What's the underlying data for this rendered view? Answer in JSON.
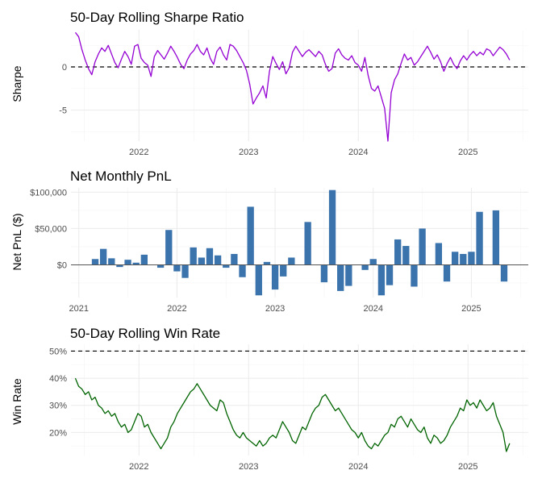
{
  "chart_data": [
    {
      "type": "line",
      "title": "50-Day Rolling Sharpe Ratio",
      "ylabel": "Sharpe",
      "xlabel": "",
      "x_ticks": [
        "2022",
        "2023",
        "2024",
        "2025"
      ],
      "x_range": [
        2021.38,
        2025.55
      ],
      "y_ticks": [
        -5,
        0
      ],
      "ylim": [
        -8.6,
        4.3
      ],
      "reference_line": 0,
      "grid": true,
      "line_color": "#9400D3",
      "series": [
        {
          "x": [
            2021.42,
            2021.45,
            2021.48,
            2021.51,
            2021.54,
            2021.57,
            2021.6,
            2021.63,
            2021.66,
            2021.69,
            2021.72,
            2021.75,
            2021.78,
            2021.81,
            2021.84,
            2021.87,
            2021.9,
            2021.93,
            2021.96,
            2021.99,
            2022.02,
            2022.05,
            2022.08,
            2022.11,
            2022.14,
            2022.17,
            2022.2,
            2022.23,
            2022.26,
            2022.29,
            2022.32,
            2022.35,
            2022.38,
            2022.41,
            2022.44,
            2022.47,
            2022.5,
            2022.53,
            2022.56,
            2022.59,
            2022.62,
            2022.65,
            2022.68,
            2022.71,
            2022.74,
            2022.77,
            2022.8,
            2022.83,
            2022.86,
            2022.89,
            2022.92,
            2022.95,
            2022.98,
            2023.01,
            2023.04,
            2023.07,
            2023.1,
            2023.13,
            2023.16,
            2023.19,
            2023.22,
            2023.25,
            2023.28,
            2023.31,
            2023.34,
            2023.37,
            2023.4,
            2023.43,
            2023.46,
            2023.49,
            2023.52,
            2023.55,
            2023.58,
            2023.61,
            2023.64,
            2023.67,
            2023.7,
            2023.73,
            2023.76,
            2023.79,
            2023.82,
            2023.85,
            2023.88,
            2023.91,
            2023.94,
            2023.97,
            2024.0,
            2024.03,
            2024.06,
            2024.09,
            2024.12,
            2024.15,
            2024.18,
            2024.21,
            2024.24,
            2024.27,
            2024.3,
            2024.33,
            2024.36,
            2024.39,
            2024.42,
            2024.45,
            2024.48,
            2024.51,
            2024.54,
            2024.57,
            2024.6,
            2024.63,
            2024.66,
            2024.69,
            2024.72,
            2024.75,
            2024.78,
            2024.81,
            2024.84,
            2024.87,
            2024.9,
            2024.93,
            2024.96,
            2024.99,
            2025.02,
            2025.05,
            2025.08,
            2025.11,
            2025.14,
            2025.17,
            2025.2,
            2025.23,
            2025.26,
            2025.29,
            2025.32,
            2025.35,
            2025.38
          ],
          "y": [
            4.0,
            3.5,
            2.0,
            0.8,
            -0.2,
            -0.9,
            0.6,
            1.5,
            2.2,
            1.8,
            2.5,
            1.5,
            0.5,
            -0.1,
            0.9,
            1.8,
            1.2,
            0.3,
            2.4,
            2.6,
            1.0,
            0.5,
            0.2,
            -1.1,
            1.2,
            1.9,
            1.4,
            0.9,
            1.6,
            2.4,
            1.8,
            1.1,
            0.3,
            -0.2,
            0.8,
            1.5,
            1.9,
            2.6,
            1.8,
            1.4,
            2.2,
            1.0,
            0.3,
            1.8,
            2.3,
            1.4,
            0.8,
            2.6,
            2.4,
            1.9,
            1.2,
            0.5,
            -0.4,
            -2.0,
            -4.3,
            -3.6,
            -3.0,
            -2.2,
            -3.6,
            -0.5,
            1.2,
            0.4,
            -0.3,
            0.6,
            -0.8,
            -0.1,
            1.7,
            2.4,
            1.8,
            1.2,
            1.7,
            2.0,
            1.6,
            1.2,
            1.8,
            1.4,
            0.3,
            -0.5,
            -0.2,
            1.6,
            2.1,
            1.4,
            1.0,
            0.8,
            1.3,
            0.5,
            0.2,
            -0.5,
            1.1,
            -1.0,
            -2.5,
            -2.8,
            -2.2,
            -3.5,
            -4.8,
            -8.6,
            -3.0,
            -1.5,
            -0.8,
            0.4,
            1.5,
            0.8,
            1.1,
            0.2,
            0.6,
            1.2,
            1.8,
            2.4,
            1.7,
            0.9,
            1.4,
            0.6,
            -0.5,
            0.4,
            1.1,
            0.3,
            -0.2,
            0.7,
            1.3,
            0.8,
            1.4,
            1.8,
            1.3,
            1.7,
            1.4,
            2.1,
            1.9,
            1.3,
            1.8,
            2.3,
            2.0,
            1.5,
            0.8
          ],
          "name": ""
        }
      ]
    },
    {
      "type": "bar",
      "title": "Net Monthly PnL",
      "ylabel": "Net PnL ($)",
      "xlabel": "",
      "x_ticks": [
        "2021",
        "2022",
        "2023",
        "2024",
        "2025"
      ],
      "x_range": [
        2020.92,
        2025.58
      ],
      "y_ticks": [
        "$0",
        "$50,000",
        "$100,000"
      ],
      "y_tick_values": [
        0,
        50000,
        100000
      ],
      "ylim": [
        -45000,
        106000
      ],
      "grid": true,
      "bar_color": "#3B73AD",
      "categories": [
        "2021-03",
        "2021-04",
        "2021-05",
        "2021-06",
        "2021-07",
        "2021-08",
        "2021-09",
        "2021-10",
        "2021-11",
        "2021-12",
        "2022-01",
        "2022-02",
        "2022-03",
        "2022-04",
        "2022-05",
        "2022-06",
        "2022-07",
        "2022-08",
        "2022-09",
        "2022-10",
        "2022-11",
        "2022-12",
        "2023-01",
        "2023-02",
        "2023-03",
        "2023-04",
        "2023-05",
        "2023-06",
        "2023-07",
        "2023-08",
        "2023-09",
        "2023-10",
        "2023-11",
        "2023-12",
        "2024-01",
        "2024-02",
        "2024-03",
        "2024-04",
        "2024-05",
        "2024-06",
        "2024-07",
        "2024-08",
        "2024-09",
        "2024-10",
        "2024-11",
        "2024-12",
        "2025-01",
        "2025-02",
        "2025-03",
        "2025-04",
        "2025-05"
      ],
      "values": [
        8000,
        22000,
        9000,
        -3000,
        7000,
        3000,
        14000,
        0,
        -4000,
        48000,
        -9000,
        -18000,
        24000,
        10000,
        23000,
        13000,
        -4000,
        15000,
        -17000,
        80000,
        -42000,
        4000,
        -34000,
        -16000,
        10000,
        0,
        59000,
        0,
        -24000,
        103000,
        -36000,
        -29000,
        0,
        -7000,
        8000,
        -42000,
        -28000,
        35000,
        26000,
        -30000,
        50000,
        0,
        30000,
        -23000,
        18000,
        15000,
        18000,
        73000,
        0,
        75000,
        -23000
      ]
    },
    {
      "type": "line",
      "title": "50-Day Rolling Win Rate",
      "ylabel": "Win Rate",
      "xlabel": "",
      "x_ticks": [
        "2022",
        "2023",
        "2024",
        "2025"
      ],
      "x_range": [
        2021.38,
        2025.55
      ],
      "y_ticks": [
        "20%",
        "30%",
        "40%",
        "50%"
      ],
      "y_tick_values": [
        0.2,
        0.3,
        0.4,
        0.5
      ],
      "ylim": [
        0.115,
        0.525
      ],
      "reference_line": 0.5,
      "grid": true,
      "line_color": "#006400",
      "series": [
        {
          "x": [
            2021.42,
            2021.45,
            2021.48,
            2021.51,
            2021.54,
            2021.57,
            2021.6,
            2021.63,
            2021.66,
            2021.69,
            2021.72,
            2021.75,
            2021.78,
            2021.81,
            2021.84,
            2021.87,
            2021.9,
            2021.93,
            2021.96,
            2021.99,
            2022.02,
            2022.05,
            2022.08,
            2022.11,
            2022.14,
            2022.17,
            2022.2,
            2022.23,
            2022.26,
            2022.29,
            2022.32,
            2022.35,
            2022.38,
            2022.41,
            2022.44,
            2022.47,
            2022.5,
            2022.53,
            2022.56,
            2022.59,
            2022.62,
            2022.65,
            2022.68,
            2022.71,
            2022.74,
            2022.77,
            2022.8,
            2022.83,
            2022.86,
            2022.89,
            2022.92,
            2022.95,
            2022.98,
            2023.01,
            2023.04,
            2023.07,
            2023.1,
            2023.13,
            2023.16,
            2023.19,
            2023.22,
            2023.25,
            2023.28,
            2023.31,
            2023.34,
            2023.37,
            2023.4,
            2023.43,
            2023.46,
            2023.49,
            2023.52,
            2023.55,
            2023.58,
            2023.61,
            2023.64,
            2023.67,
            2023.7,
            2023.73,
            2023.76,
            2023.79,
            2023.82,
            2023.85,
            2023.88,
            2023.91,
            2023.94,
            2023.97,
            2024.0,
            2024.03,
            2024.06,
            2024.09,
            2024.12,
            2024.15,
            2024.18,
            2024.21,
            2024.24,
            2024.27,
            2024.3,
            2024.33,
            2024.36,
            2024.39,
            2024.42,
            2024.45,
            2024.48,
            2024.51,
            2024.54,
            2024.57,
            2024.6,
            2024.63,
            2024.66,
            2024.69,
            2024.72,
            2024.75,
            2024.78,
            2024.81,
            2024.84,
            2024.87,
            2024.9,
            2024.93,
            2024.96,
            2024.99,
            2025.02,
            2025.05,
            2025.08,
            2025.11,
            2025.14,
            2025.17,
            2025.2,
            2025.23,
            2025.26,
            2025.29,
            2025.32,
            2025.35,
            2025.38
          ],
          "y": [
            0.4,
            0.37,
            0.36,
            0.34,
            0.35,
            0.32,
            0.33,
            0.3,
            0.29,
            0.27,
            0.28,
            0.26,
            0.27,
            0.24,
            0.22,
            0.23,
            0.2,
            0.21,
            0.24,
            0.27,
            0.26,
            0.22,
            0.23,
            0.2,
            0.18,
            0.16,
            0.14,
            0.16,
            0.18,
            0.22,
            0.24,
            0.27,
            0.29,
            0.31,
            0.33,
            0.35,
            0.36,
            0.38,
            0.36,
            0.34,
            0.32,
            0.3,
            0.29,
            0.28,
            0.32,
            0.31,
            0.27,
            0.24,
            0.21,
            0.19,
            0.18,
            0.2,
            0.18,
            0.17,
            0.16,
            0.15,
            0.17,
            0.15,
            0.16,
            0.18,
            0.19,
            0.18,
            0.21,
            0.24,
            0.22,
            0.2,
            0.17,
            0.16,
            0.19,
            0.22,
            0.21,
            0.24,
            0.27,
            0.29,
            0.3,
            0.33,
            0.34,
            0.32,
            0.3,
            0.28,
            0.29,
            0.27,
            0.25,
            0.23,
            0.21,
            0.2,
            0.18,
            0.2,
            0.17,
            0.15,
            0.14,
            0.16,
            0.15,
            0.17,
            0.19,
            0.2,
            0.23,
            0.22,
            0.25,
            0.26,
            0.24,
            0.22,
            0.25,
            0.23,
            0.21,
            0.2,
            0.22,
            0.18,
            0.16,
            0.19,
            0.18,
            0.16,
            0.17,
            0.19,
            0.22,
            0.24,
            0.26,
            0.29,
            0.28,
            0.32,
            0.3,
            0.31,
            0.29,
            0.32,
            0.3,
            0.28,
            0.29,
            0.31,
            0.26,
            0.23,
            0.2,
            0.13,
            0.16
          ],
          "name": ""
        }
      ]
    }
  ]
}
